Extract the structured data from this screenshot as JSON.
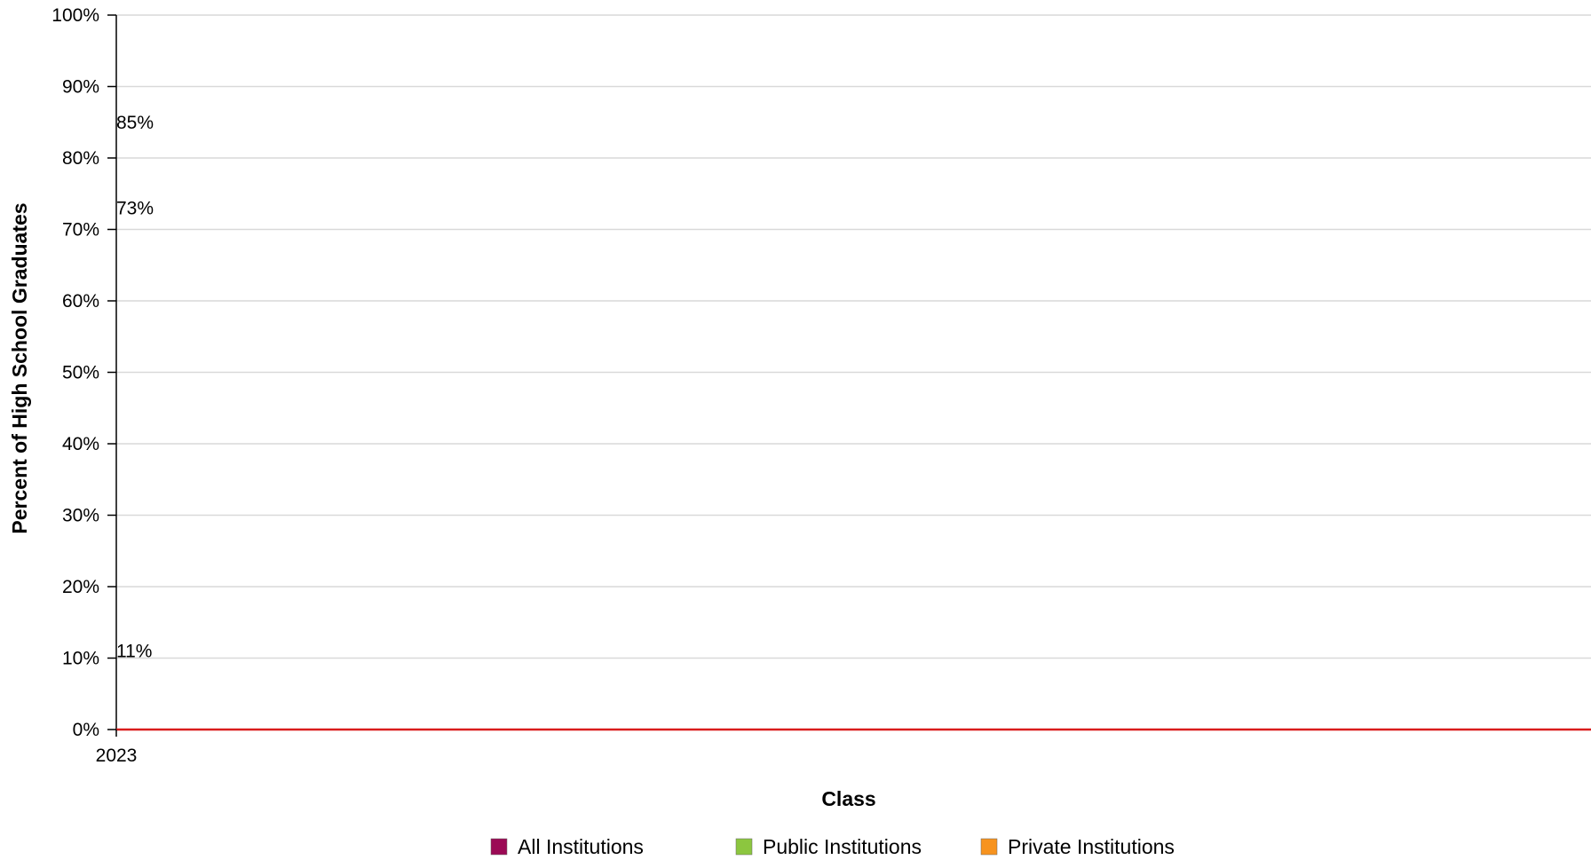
{
  "chart_data": {
    "type": "line",
    "title": "",
    "xlabel": "Class",
    "ylabel": "Percent of High School Graduates",
    "x": [
      "2023"
    ],
    "ylim": [
      0,
      100
    ],
    "yticks": [
      "0%",
      "10%",
      "20%",
      "30%",
      "40%",
      "50%",
      "60%",
      "70%",
      "80%",
      "90%",
      "100%"
    ],
    "grid": true,
    "legend_position": "bottom",
    "series": [
      {
        "name": "All Institutions",
        "color": "#9b0a55",
        "values": [
          85
        ],
        "labels": [
          "85%"
        ]
      },
      {
        "name": "Public Institutions",
        "color": "#8cc63f",
        "values": [
          73
        ],
        "labels": [
          "73%"
        ]
      },
      {
        "name": "Private Institutions",
        "color": "#f7931e",
        "values": [
          11
        ],
        "labels": [
          "11%"
        ]
      }
    ],
    "baseline_color": "#d91c1c",
    "grid_color": "#d9d9d9"
  }
}
